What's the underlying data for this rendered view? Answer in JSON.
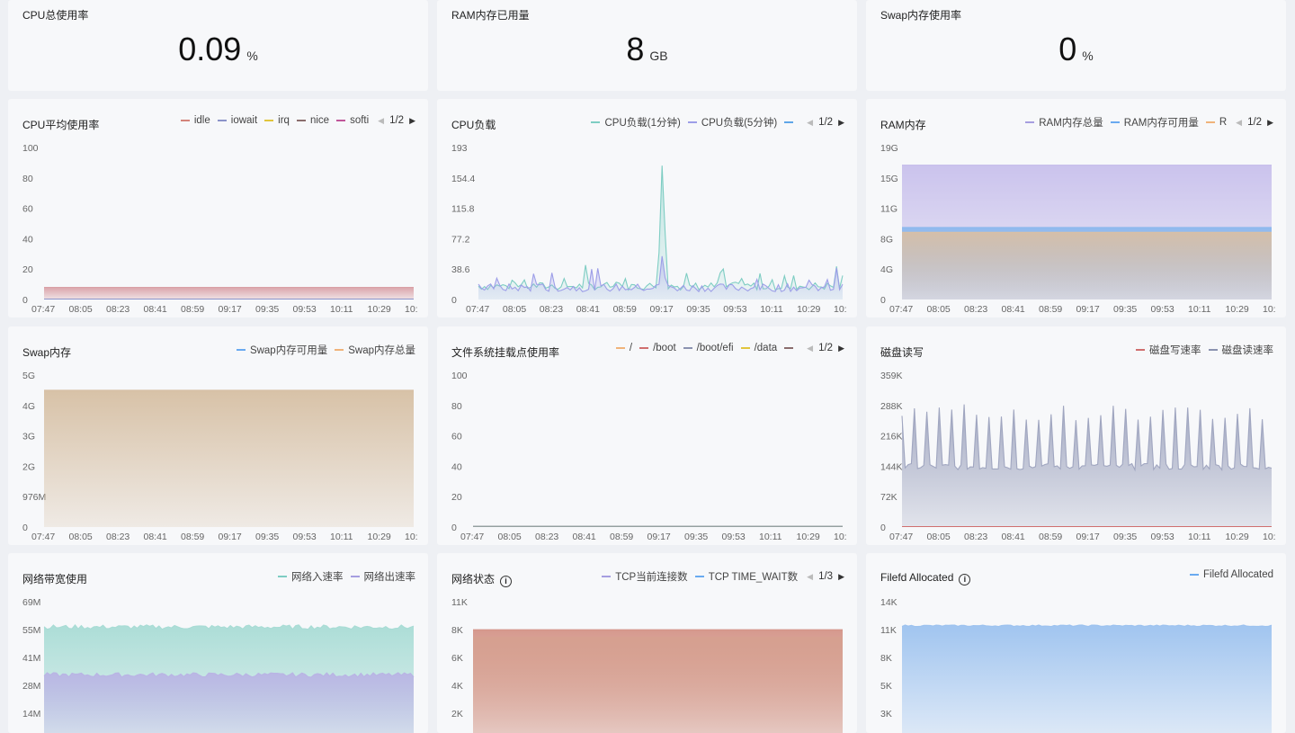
{
  "stats": [
    {
      "title": "CPU总使用率",
      "value": "0.09",
      "unit": "%"
    },
    {
      "title": "RAM内存已用量",
      "value": "8",
      "unit": "GB"
    },
    {
      "title": "Swap内存使用率",
      "value": "0",
      "unit": "%"
    }
  ],
  "x_ticks": [
    "07:47",
    "08:05",
    "08:23",
    "08:41",
    "08:59",
    "09:17",
    "09:35",
    "09:53",
    "10:11",
    "10:29",
    "10:"
  ],
  "chart_data": [
    {
      "id": "cpu-avg",
      "type": "area",
      "title": "CPU平均使用率",
      "legend": [
        {
          "name": "idle",
          "color": "#d4837a"
        },
        {
          "name": "iowait",
          "color": "#8b93c9"
        },
        {
          "name": "irq",
          "color": "#e1c53c"
        },
        {
          "name": "nice",
          "color": "#8a6d6d"
        },
        {
          "name": "softi",
          "color": "#c0569a"
        }
      ],
      "pager": "1/2",
      "y_ticks": [
        "100",
        "80",
        "60",
        "40",
        "20",
        "0"
      ],
      "ylim": [
        0,
        100
      ],
      "series": [
        {
          "name": "idle",
          "color": "#d9a0a6",
          "level": 8
        }
      ]
    },
    {
      "id": "cpu-load",
      "type": "line",
      "title": "CPU负载",
      "legend": [
        {
          "name": "CPU负载(1分钟)",
          "color": "#7ecdc3"
        },
        {
          "name": "CPU负载(5分钟)",
          "color": "#9d9ee8"
        },
        {
          "name": "",
          "color": "#5fa6e8"
        }
      ],
      "pager": "1/2",
      "y_ticks": [
        "193",
        "154.4",
        "115.8",
        "77.2",
        "38.6",
        "0"
      ],
      "ylim": [
        0,
        193
      ],
      "series": [
        {
          "name": "CPU负载(1分钟)",
          "color": "#7ecdc3",
          "base": 12,
          "spike": 170
        },
        {
          "name": "CPU负载(5分钟)",
          "color": "#9d9ee8",
          "base": 10,
          "spike": 55
        }
      ]
    },
    {
      "id": "ram",
      "type": "area",
      "title": "RAM内存",
      "legend": [
        {
          "name": "RAM内存总量",
          "color": "#a69ee0"
        },
        {
          "name": "RAM内存可用量",
          "color": "#6aaaf0"
        },
        {
          "name": "R",
          "color": "#f0b37a"
        }
      ],
      "pager": "1/2",
      "y_ticks": [
        "19G",
        "15G",
        "11G",
        "8G",
        "4G",
        "0"
      ],
      "ylim": [
        0,
        19
      ],
      "series": [
        {
          "name": "RAM内存总量",
          "color": "#c8c0ec",
          "level": 16.8
        },
        {
          "name": "RAM内存可用量",
          "color": "#8cb8ee",
          "level": 9
        },
        {
          "name": "R",
          "color": "#d8bfa6",
          "level": 8.4
        }
      ]
    },
    {
      "id": "swap",
      "type": "area",
      "title": "Swap内存",
      "legend": [
        {
          "name": "Swap内存可用量",
          "color": "#6aaaf0"
        },
        {
          "name": "Swap内存总量",
          "color": "#f0b37a"
        }
      ],
      "pager": "",
      "y_ticks": [
        "5G",
        "4G",
        "3G",
        "2G",
        "976M",
        "0"
      ],
      "ylim": [
        0,
        5
      ],
      "series": [
        {
          "name": "Swap内存总量",
          "color": "#d6bfa3",
          "level": 4.5
        }
      ]
    },
    {
      "id": "fs",
      "type": "line",
      "title": "文件系统挂载点使用率",
      "legend": [
        {
          "name": "/",
          "color": "#f0b37a"
        },
        {
          "name": "/boot",
          "color": "#d06f6f"
        },
        {
          "name": "/boot/efi",
          "color": "#8b93b0"
        },
        {
          "name": "/data",
          "color": "#e1c53c"
        },
        {
          "name": "",
          "color": "#8a6d6d"
        }
      ],
      "pager": "1/2",
      "y_ticks": [
        "100",
        "80",
        "60",
        "40",
        "20",
        "0"
      ],
      "ylim": [
        0,
        100
      ],
      "series": [
        {
          "name": "/",
          "color": "#7c8a8a",
          "level": 0.5
        }
      ]
    },
    {
      "id": "disk",
      "type": "area",
      "title": "磁盘读写",
      "legend": [
        {
          "name": "磁盘写速率",
          "color": "#d06f6f"
        },
        {
          "name": "磁盘读速率",
          "color": "#8b93b0"
        }
      ],
      "pager": "",
      "y_ticks": [
        "359K",
        "288K",
        "216K",
        "144K",
        "72K",
        "0"
      ],
      "ylim": [
        0,
        359
      ],
      "series": [
        {
          "name": "磁盘读速率",
          "color": "#a0a6c0",
          "base": 135,
          "peak": 250
        }
      ]
    },
    {
      "id": "net",
      "type": "area",
      "title": "网络带宽使用",
      "legend": [
        {
          "name": "网络入速率",
          "color": "#7ecdc3"
        },
        {
          "name": "网络出速率",
          "color": "#a69ee0"
        }
      ],
      "pager": "",
      "y_ticks": [
        "69M",
        "55M",
        "41M",
        "28M",
        "14M"
      ],
      "ylim": [
        0,
        69
      ],
      "series": [
        {
          "name": "网络入速率",
          "color": "#a8dcd5",
          "level": 56.5
        },
        {
          "name": "网络出速率",
          "color": "#b9b4e4",
          "level": 33
        }
      ]
    },
    {
      "id": "netstat",
      "type": "area",
      "title": "网络状态",
      "legend": [
        {
          "name": "TCP当前连接数",
          "color": "#a69ee0"
        },
        {
          "name": "TCP TIME_WAIT数",
          "color": "#6aaaf0"
        }
      ],
      "pager": "1/3",
      "y_ticks": [
        "11K",
        "8K",
        "6K",
        "4K",
        "2K"
      ],
      "ylim": [
        0,
        11
      ],
      "series": [
        {
          "name": "TCP当前连接数",
          "color": "#d49488",
          "level": 8.8
        },
        {
          "name": "TCP TIME_WAIT数",
          "color": "#d6a090",
          "level": 8.2
        }
      ]
    },
    {
      "id": "filefd",
      "type": "area",
      "title": "Filefd Allocated",
      "legend": [
        {
          "name": "Filefd Allocated",
          "color": "#6aaaf0"
        }
      ],
      "pager": "",
      "y_ticks": [
        "14K",
        "11K",
        "8K",
        "5K",
        "3K"
      ],
      "ylim": [
        0,
        14
      ],
      "series": [
        {
          "name": "Filefd Allocated",
          "color": "#9cc2ef",
          "level": 11.6
        }
      ]
    }
  ]
}
